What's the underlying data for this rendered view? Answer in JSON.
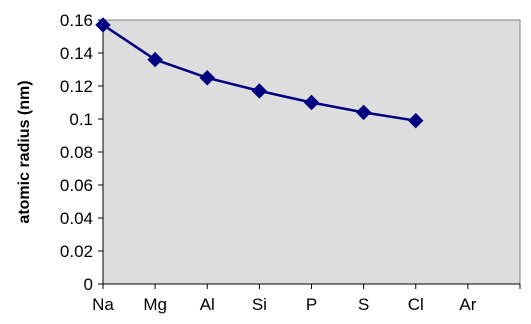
{
  "chart_data": {
    "type": "line",
    "title": "",
    "xlabel": "",
    "ylabel": "atomic radius (nm)",
    "categories": [
      "Na",
      "Mg",
      "Al",
      "Si",
      "P",
      "S",
      "Cl",
      "Ar"
    ],
    "series": [
      {
        "values": [
          0.157,
          0.136,
          0.125,
          0.117,
          0.11,
          0.104,
          0.099,
          null
        ]
      }
    ],
    "y_ticks": [
      "0",
      "0.02",
      "0.04",
      "0.06",
      "0.08",
      "0.1",
      "0.12",
      "0.14",
      "0.16"
    ],
    "ylim": [
      0,
      0.16
    ],
    "grid": false,
    "legend": "none",
    "colors": {
      "plot_background": "#dddddd",
      "series_line": "#000080",
      "axis": "#000000"
    },
    "marker": "diamond"
  }
}
